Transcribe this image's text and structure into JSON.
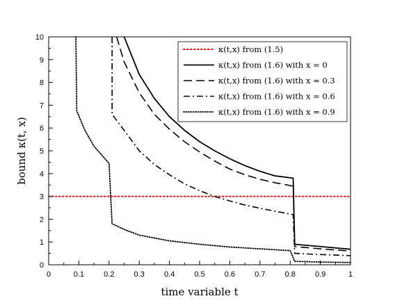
{
  "chart_data": {
    "type": "line",
    "xlabel": "time variable t",
    "ylabel": "bound κ(t, x)",
    "xlim": [
      0,
      1
    ],
    "ylim": [
      0,
      10
    ],
    "xticks": [
      "0",
      "0.1",
      "0.2",
      "0.3",
      "0.4",
      "0.5",
      "0.6",
      "0.7",
      "0.8",
      "0.9",
      "1"
    ],
    "yticks": [
      "0",
      "1",
      "2",
      "3",
      "4",
      "5",
      "6",
      "7",
      "8",
      "9",
      "10"
    ],
    "grid": false,
    "legend_position": "top-right",
    "series": [
      {
        "name": "κ(t,x) from (1.5)",
        "style": "dotted-red",
        "color": "#ff0000",
        "points": [
          [
            0,
            3
          ],
          [
            1,
            3
          ]
        ]
      },
      {
        "name": "κ(t,x) from (1.6) with x = 0",
        "style": "solid",
        "color": "#000000",
        "points": [
          [
            0.25,
            10.0
          ],
          [
            0.3,
            8.35
          ],
          [
            0.35,
            7.3
          ],
          [
            0.4,
            6.5
          ],
          [
            0.45,
            5.9
          ],
          [
            0.5,
            5.4
          ],
          [
            0.55,
            5.0
          ],
          [
            0.6,
            4.65
          ],
          [
            0.65,
            4.35
          ],
          [
            0.7,
            4.1
          ],
          [
            0.75,
            3.9
          ],
          [
            0.81,
            3.8
          ],
          [
            0.815,
            0.9
          ],
          [
            0.9,
            0.8
          ],
          [
            1.0,
            0.68
          ]
        ]
      },
      {
        "name": "κ(t,x) from (1.6) with x = 0.3",
        "style": "dashed",
        "color": "#000000",
        "points": [
          [
            0.225,
            10.0
          ],
          [
            0.25,
            8.9
          ],
          [
            0.3,
            7.55
          ],
          [
            0.35,
            6.6
          ],
          [
            0.4,
            5.95
          ],
          [
            0.45,
            5.4
          ],
          [
            0.5,
            4.95
          ],
          [
            0.55,
            4.55
          ],
          [
            0.6,
            4.2
          ],
          [
            0.65,
            3.95
          ],
          [
            0.7,
            3.75
          ],
          [
            0.75,
            3.6
          ],
          [
            0.81,
            3.45
          ],
          [
            0.815,
            0.8
          ],
          [
            0.9,
            0.7
          ],
          [
            1.0,
            0.6
          ]
        ]
      },
      {
        "name": "κ(t,x) from (1.6) with x = 0.6",
        "style": "dash-dot",
        "color": "#000000",
        "points": [
          [
            0.21,
            10.0
          ],
          [
            0.21,
            6.6
          ],
          [
            0.25,
            5.9
          ],
          [
            0.3,
            5.0
          ],
          [
            0.35,
            4.4
          ],
          [
            0.4,
            3.95
          ],
          [
            0.45,
            3.55
          ],
          [
            0.5,
            3.25
          ],
          [
            0.55,
            3.0
          ],
          [
            0.6,
            2.8
          ],
          [
            0.65,
            2.62
          ],
          [
            0.7,
            2.48
          ],
          [
            0.75,
            2.35
          ],
          [
            0.81,
            2.2
          ],
          [
            0.815,
            0.5
          ],
          [
            0.9,
            0.45
          ],
          [
            1.0,
            0.4
          ]
        ]
      },
      {
        "name": "κ(t,x) from (1.6) with x = 0.9",
        "style": "dotted",
        "color": "#000000",
        "points": [
          [
            0.09,
            10.0
          ],
          [
            0.093,
            6.75
          ],
          [
            0.12,
            5.9
          ],
          [
            0.15,
            5.2
          ],
          [
            0.18,
            4.75
          ],
          [
            0.2,
            4.45
          ],
          [
            0.21,
            1.8
          ],
          [
            0.25,
            1.55
          ],
          [
            0.3,
            1.3
          ],
          [
            0.4,
            1.05
          ],
          [
            0.5,
            0.9
          ],
          [
            0.6,
            0.78
          ],
          [
            0.7,
            0.7
          ],
          [
            0.8,
            0.62
          ],
          [
            0.815,
            0.15
          ],
          [
            0.9,
            0.12
          ],
          [
            1.0,
            0.1
          ]
        ]
      }
    ]
  }
}
